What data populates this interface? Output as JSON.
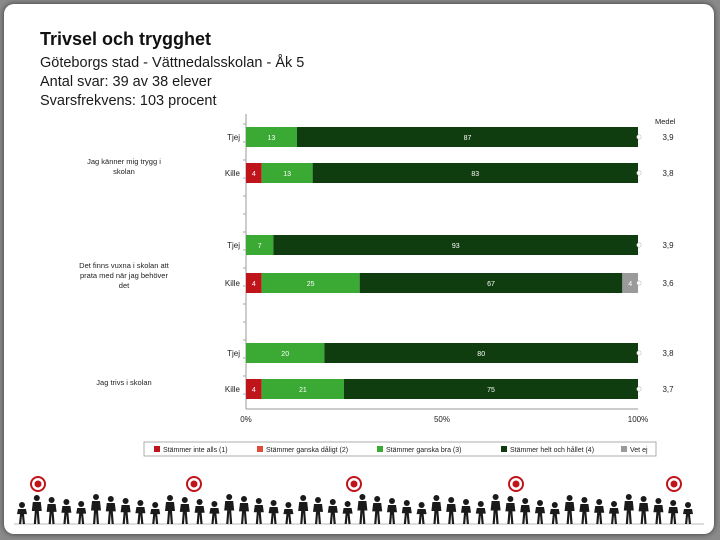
{
  "header": {
    "title": "Trivsel och trygghet",
    "line1": "Göteborgs stad - Vättnedalsskolan - Åk 5",
    "line2": "Antal svar: 39 av 38 elever",
    "line3": "Svarsfrekvens: 103 procent"
  },
  "chart_data": {
    "type": "bar",
    "orientation": "horizontal",
    "stacked": true,
    "percent_axis": true,
    "xlim": [
      0,
      100
    ],
    "x_ticks": [
      "0%",
      "50%",
      "100%"
    ],
    "mean_header": "Medel",
    "legend_position": "bottom",
    "legend": [
      {
        "name": "Stämmer inte alls (1)",
        "color": "#c0141b"
      },
      {
        "name": "Stämmer ganska dåligt (2)",
        "color": "#e04b3a"
      },
      {
        "name": "Stämmer ganska bra (3)",
        "color": "#3aaa35"
      },
      {
        "name": "Stämmer helt och hållet (4)",
        "color": "#0f3d0f"
      },
      {
        "name": "Vet ej",
        "color": "#9a9a9a"
      }
    ],
    "groups": [
      {
        "label": "Jag känner mig trygg i skolan",
        "rows": [
          {
            "label": "Tjej",
            "values": [
              0,
              0,
              13,
              87,
              0
            ],
            "labels": [
              "0",
              "",
              "13",
              "87",
              ""
            ],
            "mean": "3,9"
          },
          {
            "label": "Kille",
            "values": [
              4,
              0,
              13,
              83,
              0
            ],
            "labels": [
              "4",
              "0",
              "13",
              "83",
              ""
            ],
            "mean": "3,8"
          }
        ]
      },
      {
        "label": "Det finns vuxna i skolan att prata med när jag behöver det",
        "rows": [
          {
            "label": "Tjej",
            "values": [
              0,
              0,
              7,
              93,
              0
            ],
            "labels": [
              "0",
              "",
              "7",
              "93",
              ""
            ],
            "mean": "3,9"
          },
          {
            "label": "Kille",
            "values": [
              4,
              0,
              25,
              67,
              4
            ],
            "labels": [
              "4",
              "0",
              "25",
              "67",
              "4"
            ],
            "mean": "3,6"
          }
        ]
      },
      {
        "label": "Jag trivs i skolan",
        "rows": [
          {
            "label": "Tjej",
            "values": [
              0,
              0,
              20,
              80,
              0
            ],
            "labels": [
              "0",
              "",
              "20",
              "80",
              ""
            ],
            "mean": "3,8"
          },
          {
            "label": "Kille",
            "values": [
              4,
              0,
              21,
              75,
              0
            ],
            "labels": [
              "4",
              "0",
              "21",
              "75",
              ""
            ],
            "mean": "3,7"
          }
        ]
      }
    ]
  }
}
